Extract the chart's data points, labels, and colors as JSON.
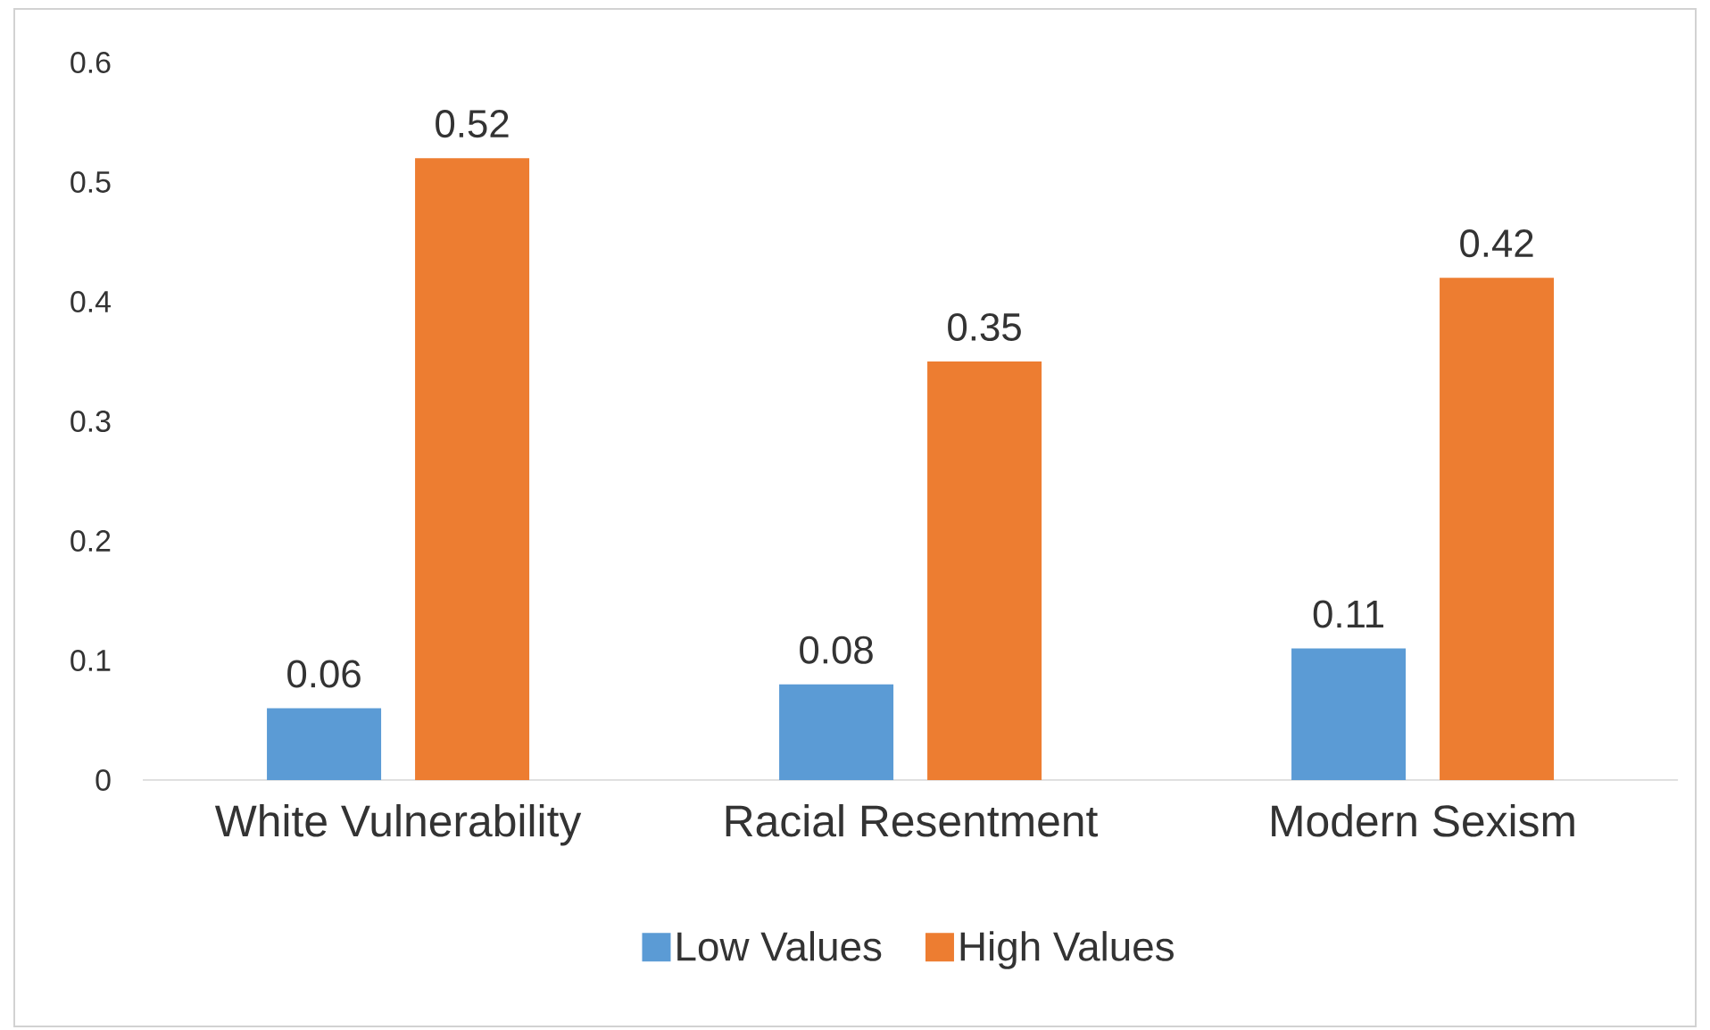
{
  "chart_data": {
    "type": "bar",
    "categories": [
      "White Vulnerability",
      "Racial Resentment",
      "Modern Sexism"
    ],
    "series": [
      {
        "name": "Low Values",
        "color": "#5b9bd5",
        "values": [
          0.06,
          0.08,
          0.11
        ]
      },
      {
        "name": "High Values",
        "color": "#ed7d31",
        "values": [
          0.52,
          0.35,
          0.42
        ]
      }
    ],
    "ylim": [
      0,
      0.6
    ],
    "yticks": [
      0,
      0.1,
      0.2,
      0.3,
      0.4,
      0.5,
      0.6
    ],
    "data_labels": true,
    "legend": "bottom",
    "grid": false
  }
}
